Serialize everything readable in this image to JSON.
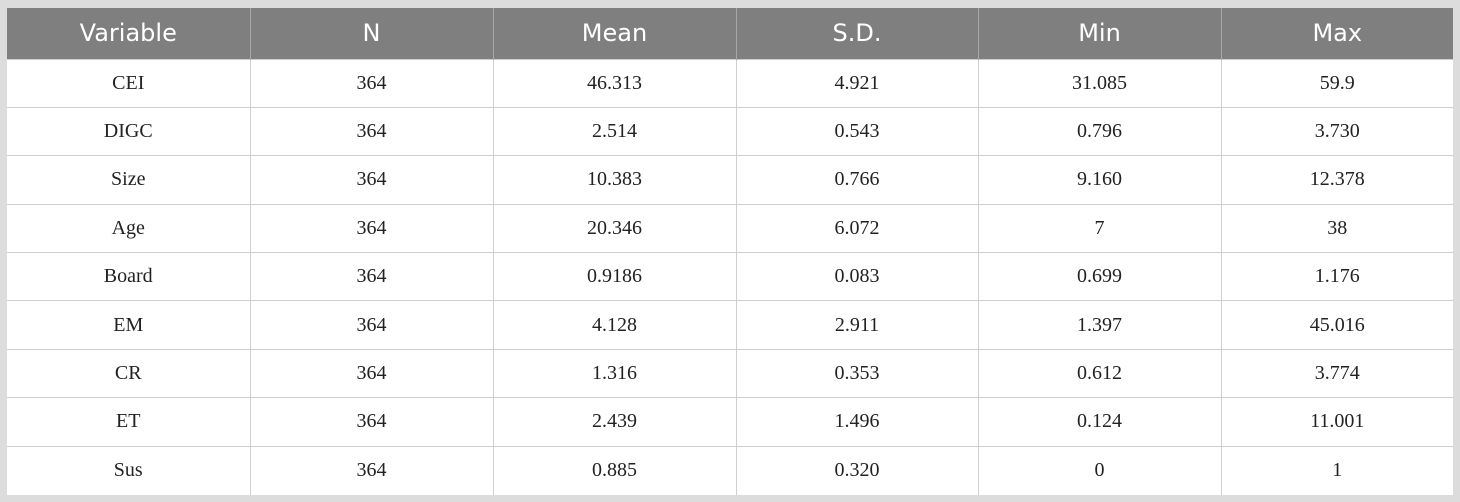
{
  "table": {
    "headers": [
      "Variable",
      "N",
      "Mean",
      "S.D.",
      "Min",
      "Max"
    ],
    "rows": [
      [
        "CEI",
        "364",
        "46.313",
        "4.921",
        "31.085",
        "59.9"
      ],
      [
        "DIGC",
        "364",
        "2.514",
        "0.543",
        "0.796",
        "3.730"
      ],
      [
        "Size",
        "364",
        "10.383",
        "0.766",
        "9.160",
        "12.378"
      ],
      [
        "Age",
        "364",
        "20.346",
        "6.072",
        "7",
        "38"
      ],
      [
        "Board",
        "364",
        "0.9186",
        "0.083",
        "0.699",
        "1.176"
      ],
      [
        "EM",
        "364",
        "4.128",
        "2.911",
        "1.397",
        "45.016"
      ],
      [
        "CR",
        "364",
        "1.316",
        "0.353",
        "0.612",
        "3.774"
      ],
      [
        "ET",
        "364",
        "2.439",
        "1.496",
        "0.124",
        "11.001"
      ],
      [
        "Sus",
        "364",
        "0.885",
        "0.320",
        "0",
        "1"
      ]
    ]
  }
}
